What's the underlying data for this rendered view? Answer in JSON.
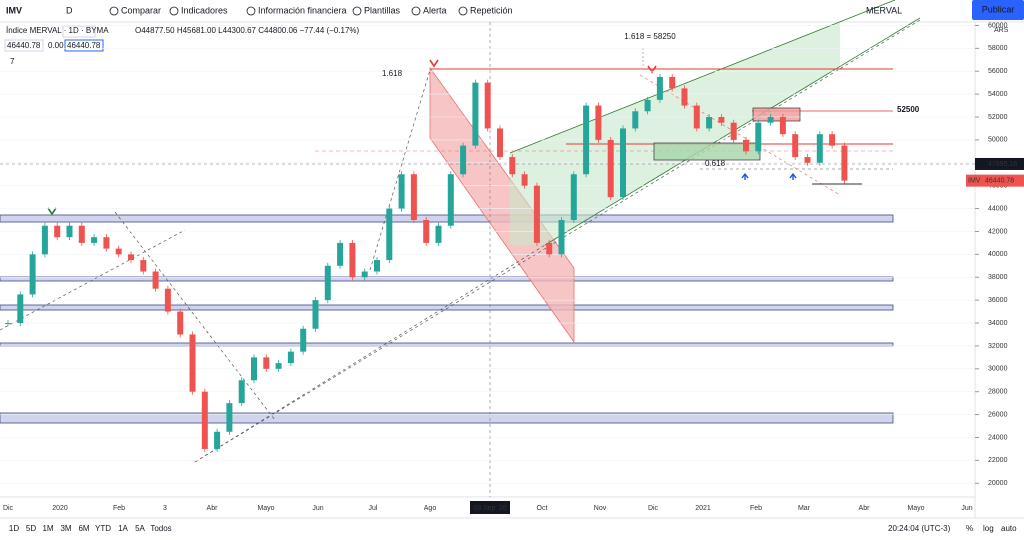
{
  "toolbar": {
    "symbol": "IMV",
    "interval": "D",
    "items": [
      "Comparar",
      "Indicadores",
      "Información financiera",
      "Plantillas",
      "Alerta",
      "Repetición"
    ],
    "watch_symbol": "MERVAL",
    "publish": "Publicar"
  },
  "legend": {
    "title": "Índice MERVAL · 1D · BYMA",
    "ohlc": "O44877.50 H45681.00 L44300.67 C44800.06 −77.44 (−0.17%)",
    "price": "46440.78",
    "change": "0.00",
    "price2": "46440.78",
    "count": "7"
  },
  "chart_data": {
    "type": "candlestick",
    "currency": "ARS",
    "closes": [
      34000,
      36500,
      40000,
      42500,
      41500,
      42500,
      41000,
      41500,
      40500,
      40000,
      39500,
      38500,
      37000,
      35000,
      33000,
      28000,
      23000,
      24500,
      27000,
      29000,
      31000,
      30000,
      30500,
      31500,
      33500,
      36000,
      39000,
      41000,
      38000,
      38500,
      39500,
      44000,
      47000,
      43000,
      41000,
      42500,
      47000,
      49500,
      55000,
      51000,
      48500,
      47000,
      46000,
      41000,
      40000,
      43000,
      47000,
      53000,
      50000,
      45000,
      51000,
      52500,
      53500,
      55500,
      54500,
      53000,
      51000,
      52000,
      51500,
      50000,
      49000,
      51500,
      52000,
      50500,
      48500,
      48000,
      50500,
      49500,
      46440.78
    ],
    "ylim": [
      18800,
      60300
    ],
    "yticks": [
      20000,
      22000,
      24000,
      26000,
      28000,
      30000,
      32000,
      34000,
      36000,
      38000,
      40000,
      42000,
      44000,
      46000,
      48000,
      50000,
      52000,
      54000,
      56000,
      58000,
      60000
    ],
    "time_labels": [
      "Dic",
      "2020",
      "Feb",
      "3",
      "Abr",
      "Mayo",
      "Jun",
      "Jul",
      "Ago",
      "Oct",
      "Nov",
      "Dic",
      "2021",
      "Feb",
      "Mar",
      "Abr",
      "Mayo",
      "Jun"
    ],
    "crosshair_label": "03 Sep '20",
    "annotations": {
      "fib_left": "1.618",
      "fib_top": "1.618 = 58250",
      "level": "52500",
      "fib_mid": "0.618"
    },
    "crosshair_price": 47895.16,
    "last_symbol": "IMV",
    "last_price": 46440.78,
    "up_color": "#26a69a",
    "down_color": "#ef5350"
  },
  "bottom": {
    "ranges": [
      "1D",
      "5D",
      "1M",
      "3M",
      "6M",
      "YTD",
      "1A",
      "5A",
      "Todos"
    ],
    "clock": "20:24:04 (UTC-3)",
    "percent": "%",
    "log": "log",
    "auto": "auto"
  }
}
